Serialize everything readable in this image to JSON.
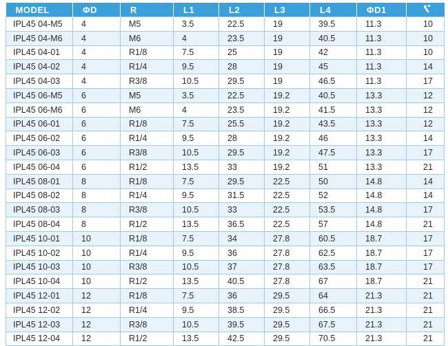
{
  "table": {
    "headers": [
      "MODEL",
      "ΦD",
      "R",
      "L1",
      "L2",
      "L3",
      "L4",
      "ΦD1",
      "wrench-icon"
    ],
    "rows": [
      [
        "IPL45 04-M5",
        "4",
        "M5",
        "3.5",
        "22.5",
        "19",
        "39.5",
        "11.3",
        "10"
      ],
      [
        "IPL45 04-M6",
        "4",
        "M6",
        "4",
        "23.5",
        "19",
        "40.5",
        "11.3",
        "10"
      ],
      [
        "IPL45 04-01",
        "4",
        "R1/8",
        "7.5",
        "25",
        "19",
        "42",
        "11.3",
        "10"
      ],
      [
        "IPL45 04-02",
        "4",
        "R1/4",
        "9.5",
        "28",
        "19",
        "45",
        "11.3",
        "14"
      ],
      [
        "IPL45 04-03",
        "4",
        "R3/8",
        "10.5",
        "29.5",
        "19",
        "46.5",
        "11.3",
        "17"
      ],
      [
        "IPL45 06-M5",
        "6",
        "M5",
        "3.5",
        "22.5",
        "19.2",
        "40.5",
        "13.3",
        "12"
      ],
      [
        "IPL45 06-M6",
        "6",
        "M6",
        "4",
        "23.5",
        "19.2",
        "41.5",
        "13.3",
        "12"
      ],
      [
        "IPL45 06-01",
        "6",
        "R1/8",
        "7.5",
        "25.5",
        "19.2",
        "43.5",
        "13.3",
        "12"
      ],
      [
        "IPL45 06-02",
        "6",
        "R1/4",
        "9.5",
        "28",
        "19.2",
        "46",
        "13.3",
        "14"
      ],
      [
        "IPL45 06-03",
        "6",
        "R3/8",
        "10.5",
        "29.5",
        "19.2",
        "47.5",
        "13.3",
        "17"
      ],
      [
        "IPL45 06-04",
        "6",
        "R1/2",
        "13.5",
        "33",
        "19.2",
        "51",
        "13.3",
        "21"
      ],
      [
        "IPL45 08-01",
        "8",
        "R1/8",
        "7.5",
        "29.5",
        "22.5",
        "50",
        "14.8",
        "14"
      ],
      [
        "IPL45 08-02",
        "8",
        "R1/4",
        "9.5",
        "31.5",
        "22.5",
        "52",
        "14.8",
        "14"
      ],
      [
        "IPL45 08-03",
        "8",
        "R3/8",
        "10.5",
        "33",
        "22.5",
        "53.5",
        "14.8",
        "17"
      ],
      [
        "IPL45 08-04",
        "8",
        "R1/2",
        "13.5",
        "36.5",
        "22.5",
        "57",
        "14.8",
        "21"
      ],
      [
        "IPL45 10-01",
        "10",
        "R1/8",
        "7.5",
        "34",
        "27.8",
        "60.5",
        "18.7",
        "17"
      ],
      [
        "IPL45 10-02",
        "10",
        "R1/4",
        "9.5",
        "36",
        "27.8",
        "62.5",
        "18.7",
        "17"
      ],
      [
        "IPL45 10-03",
        "10",
        "R3/8",
        "10.5",
        "37",
        "27.8",
        "63.5",
        "18.7",
        "17"
      ],
      [
        "IPL45 10-04",
        "10",
        "R1/2",
        "13.5",
        "40.5",
        "27.8",
        "67",
        "18.7",
        "21"
      ],
      [
        "IPL45 12-01",
        "12",
        "R1/8",
        "7.5",
        "36",
        "29.5",
        "64",
        "21.3",
        "21"
      ],
      [
        "IPL45 12-02",
        "12",
        "R1/4",
        "9.5",
        "38.5",
        "29.5",
        "66.5",
        "21.3",
        "21"
      ],
      [
        "IPL45 12-03",
        "12",
        "R3/8",
        "10.5",
        "39.5",
        "29.5",
        "67.5",
        "21.3",
        "21"
      ],
      [
        "IPL45 12-04",
        "12",
        "R1/2",
        "13.5",
        "42.5",
        "29.5",
        "70.5",
        "21.3",
        "21"
      ]
    ]
  },
  "colors": {
    "header": "#3aa0dc",
    "stripe": "#e8f2fb",
    "border": "#9fcbe8"
  }
}
